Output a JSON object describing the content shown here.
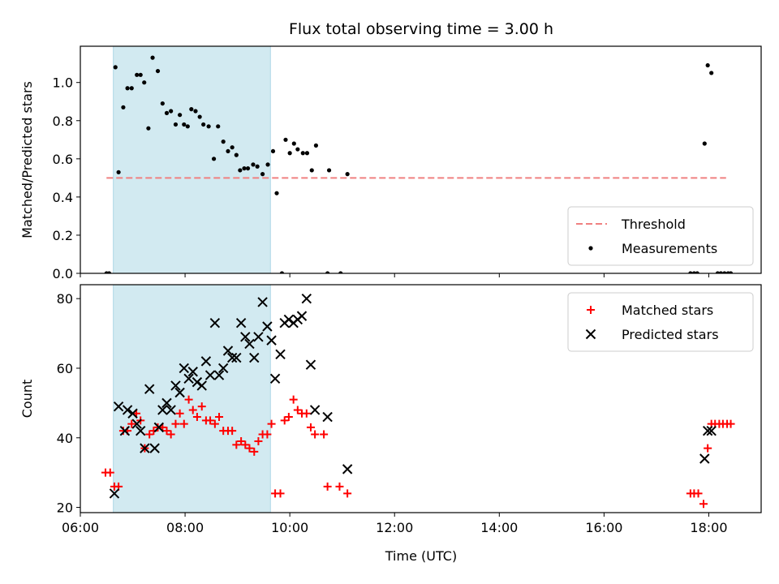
{
  "chart_data": [
    {
      "type": "scatter",
      "title": "Flux total observing time = 3.00 h",
      "xlabel": "",
      "ylabel": "Matched/Predicted stars",
      "xlim": [
        6.0,
        19.0
      ],
      "ylim": [
        0.0,
        1.19
      ],
      "yticks": [
        0.0,
        0.2,
        0.4,
        0.6,
        0.8,
        1.0
      ],
      "ytick_labels": [
        "0.0",
        "0.2",
        "0.4",
        "0.6",
        "0.8",
        "1.0"
      ],
      "xticks": [
        6,
        8,
        10,
        12,
        14,
        16,
        18
      ],
      "shaded_interval": [
        6.63,
        9.63
      ],
      "shade_color": "#add8e6",
      "legend_position": "lower-right",
      "threshold": {
        "name": "Threshold",
        "value": 0.5,
        "x_range": [
          6.5,
          18.33
        ],
        "color": "#f08080",
        "style": "dashed"
      },
      "series": [
        {
          "name": "Measurements",
          "marker": "dot",
          "color": "#000000",
          "x": [
            6.5,
            6.55,
            6.67,
            6.73,
            6.82,
            6.9,
            6.98,
            7.08,
            7.15,
            7.22,
            7.3,
            7.38,
            7.48,
            7.57,
            7.65,
            7.73,
            7.82,
            7.9,
            7.98,
            8.05,
            8.12,
            8.2,
            8.28,
            8.35,
            8.45,
            8.55,
            8.63,
            8.73,
            8.82,
            8.9,
            8.98,
            9.05,
            9.13,
            9.2,
            9.3,
            9.38,
            9.48,
            9.58,
            9.68,
            9.75,
            9.85,
            9.92,
            10.0,
            10.08,
            10.15,
            10.25,
            10.33,
            10.42,
            10.5,
            10.72,
            10.75,
            10.97,
            11.1,
            17.65,
            17.72,
            17.78,
            17.92,
            17.98,
            18.05,
            18.17,
            18.23,
            18.3,
            18.37,
            18.42
          ],
          "y": [
            0.0,
            0.0,
            1.08,
            0.53,
            0.87,
            0.97,
            0.97,
            1.04,
            1.04,
            1.0,
            0.76,
            1.13,
            1.06,
            0.89,
            0.84,
            0.85,
            0.78,
            0.83,
            0.78,
            0.77,
            0.86,
            0.85,
            0.82,
            0.78,
            0.77,
            0.6,
            0.77,
            0.69,
            0.64,
            0.66,
            0.62,
            0.54,
            0.55,
            0.55,
            0.57,
            0.56,
            0.52,
            0.57,
            0.64,
            0.42,
            0.0,
            0.7,
            0.63,
            0.68,
            0.65,
            0.63,
            0.63,
            0.54,
            0.67,
            0.0,
            0.54,
            0.0,
            0.52,
            0.0,
            0.0,
            0.0,
            0.68,
            1.09,
            1.05,
            0.0,
            0.0,
            0.0,
            0.0,
            0.0
          ]
        }
      ]
    },
    {
      "type": "scatter",
      "title": "",
      "xlabel": "Time (UTC)",
      "ylabel": "Count",
      "xlim": [
        6.0,
        19.0
      ],
      "ylim": [
        18.5,
        84
      ],
      "yticks": [
        20,
        40,
        60,
        80
      ],
      "ytick_labels": [
        "20",
        "40",
        "60",
        "80"
      ],
      "xticks": [
        6,
        8,
        10,
        12,
        14,
        16,
        18
      ],
      "xtick_labels": [
        "06:00",
        "08:00",
        "10:00",
        "12:00",
        "14:00",
        "16:00",
        "18:00"
      ],
      "shaded_interval": [
        6.63,
        9.63
      ],
      "shade_color": "#add8e6",
      "legend_position": "upper-right",
      "series": [
        {
          "name": "Matched stars",
          "marker": "plus",
          "color": "#ff0000",
          "x": [
            6.48,
            6.57,
            6.65,
            6.73,
            6.82,
            6.9,
            6.98,
            7.07,
            7.15,
            7.23,
            7.32,
            7.4,
            7.48,
            7.57,
            7.65,
            7.73,
            7.82,
            7.9,
            7.98,
            8.07,
            8.15,
            8.23,
            8.32,
            8.4,
            8.48,
            8.57,
            8.65,
            8.73,
            8.82,
            8.9,
            8.98,
            9.07,
            9.15,
            9.23,
            9.32,
            9.4,
            9.48,
            9.57,
            9.65,
            9.72,
            9.82,
            9.9,
            9.98,
            10.07,
            10.15,
            10.23,
            10.32,
            10.4,
            10.48,
            10.65,
            10.72,
            10.95,
            11.1,
            17.65,
            17.72,
            17.8,
            17.9,
            17.98,
            18.05,
            18.12,
            18.2,
            18.27,
            18.35,
            18.42
          ],
          "y": [
            30,
            30,
            26,
            26,
            42,
            42,
            44,
            47,
            45,
            37,
            41,
            42,
            43,
            43,
            42,
            41,
            44,
            47,
            44,
            51,
            48,
            46,
            49,
            45,
            45,
            44,
            46,
            42,
            42,
            42,
            38,
            39,
            38,
            37,
            36,
            39,
            41,
            41,
            44,
            24,
            24,
            45,
            46,
            51,
            48,
            47,
            47,
            43,
            41,
            41,
            26,
            26,
            24,
            24,
            24,
            24,
            21,
            37,
            44,
            44,
            44,
            44,
            44,
            44
          ]
        },
        {
          "name": "Predicted stars",
          "marker": "x",
          "color": "#000000",
          "x": [
            6.65,
            6.73,
            6.85,
            6.9,
            7.0,
            7.08,
            7.15,
            7.23,
            7.32,
            7.42,
            7.5,
            7.57,
            7.65,
            7.73,
            7.82,
            7.9,
            7.98,
            8.07,
            8.15,
            8.23,
            8.32,
            8.4,
            8.48,
            8.57,
            8.65,
            8.73,
            8.82,
            8.9,
            8.98,
            9.07,
            9.15,
            9.23,
            9.32,
            9.4,
            9.48,
            9.57,
            9.65,
            9.72,
            9.82,
            9.9,
            9.98,
            10.07,
            10.15,
            10.23,
            10.32,
            10.4,
            10.48,
            10.72,
            11.1,
            17.92,
            17.98,
            18.05
          ],
          "y": [
            24,
            49,
            42,
            48,
            47,
            44,
            42,
            37,
            54,
            37,
            43,
            48,
            50,
            48,
            55,
            53,
            60,
            57,
            59,
            56,
            55,
            62,
            58,
            73,
            58,
            60,
            65,
            63,
            63,
            73,
            69,
            67,
            63,
            69,
            79,
            72,
            68,
            57,
            64,
            73,
            74,
            73,
            74,
            75,
            80,
            61,
            48,
            46,
            31,
            34,
            42,
            42
          ]
        }
      ]
    }
  ]
}
